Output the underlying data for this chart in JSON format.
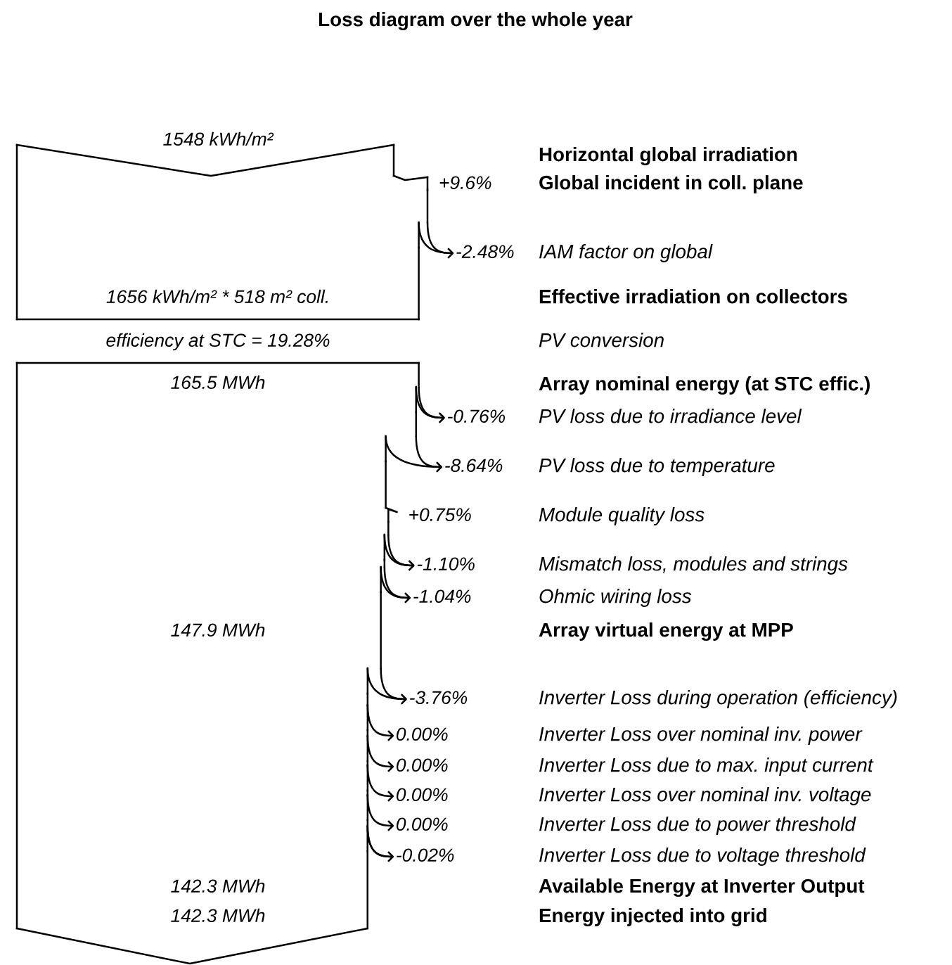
{
  "chart_data": {
    "type": "other",
    "title": "Loss diagram over the whole year",
    "categories": [
      "Horizontal global irradiation",
      "Global incident in coll. plane",
      "IAM factor on global",
      "Effective irradiation on collectors",
      "PV conversion",
      "Array nominal energy (at STC effic.)",
      "PV loss due to irradiance level",
      "PV loss due to temperature",
      "Module quality loss",
      "Mismatch loss, modules and strings",
      "Ohmic wiring loss",
      "Array virtual energy at MPP",
      "Inverter Loss during operation (efficiency)",
      "Inverter Loss over nominal inv. power",
      "Inverter Loss due to max. input current",
      "Inverter Loss over nominal inv. voltage",
      "Inverter Loss due to power threshold",
      "Inverter Loss due to voltage threshold",
      "Available Energy at Inverter Output",
      "Energy injected into grid"
    ],
    "values": [
      null,
      9.6,
      -2.48,
      null,
      null,
      null,
      -0.76,
      -8.64,
      0.75,
      -1.1,
      -1.04,
      null,
      -3.76,
      0.0,
      0.0,
      0.0,
      0.0,
      -0.02,
      null,
      null
    ],
    "value_labels": [
      null,
      "+9.6%",
      "-2.48%",
      null,
      null,
      null,
      "-0.76%",
      "-8.64%",
      "+0.75%",
      "-1.10%",
      "-1.04%",
      null,
      "-3.76%",
      "0.00%",
      "0.00%",
      "0.00%",
      "0.00%",
      "-0.02%",
      null,
      null
    ],
    "annotations": [
      "1548 kWh/m²",
      "1656 kWh/m² * 518 m² coll.",
      "efficiency at STC = 19.28%",
      "165.5 MWh",
      "147.9 MWh",
      "142.3 MWh",
      "142.3 MWh"
    ]
  }
}
